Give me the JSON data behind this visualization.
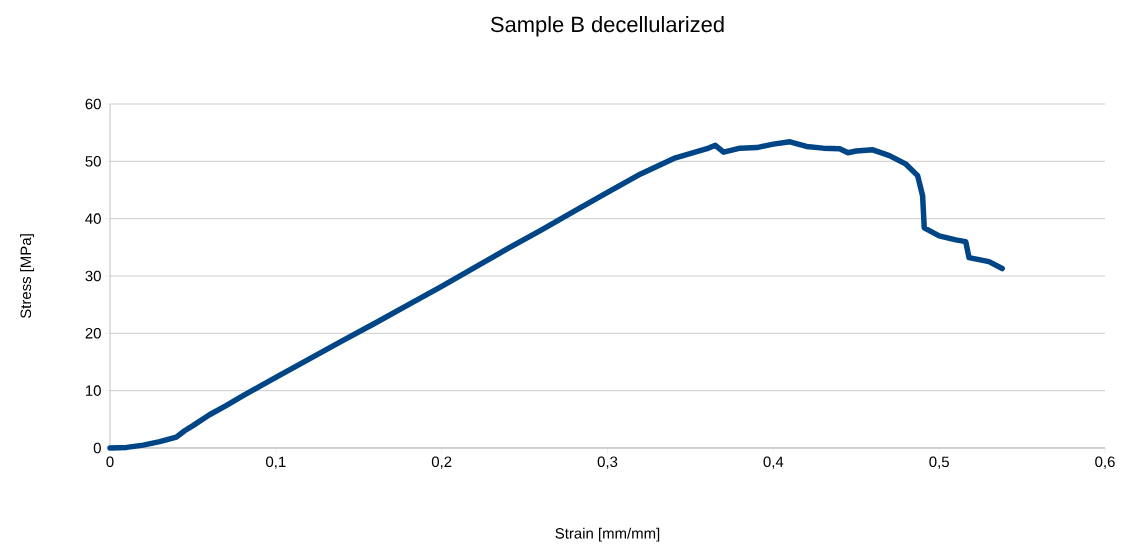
{
  "chart_data": {
    "type": "line",
    "title": "Sample B decellularized",
    "xlabel": "Strain [mm/mm]",
    "ylabel": "Stress [MPa]",
    "series": [
      {
        "color": "#004586",
        "x": [
          0,
          0.01,
          0.02,
          0.03,
          0.04,
          0.045,
          0.05,
          0.06,
          0.07,
          0.08,
          0.09,
          0.1,
          0.12,
          0.14,
          0.16,
          0.18,
          0.2,
          0.22,
          0.24,
          0.26,
          0.28,
          0.3,
          0.32,
          0.34,
          0.36,
          0.365,
          0.37,
          0.38,
          0.39,
          0.4,
          0.41,
          0.42,
          0.43,
          0.44,
          0.445,
          0.45,
          0.46,
          0.47,
          0.48,
          0.487,
          0.49,
          0.491,
          0.5,
          0.51,
          0.516,
          0.518,
          0.53,
          0.538
        ],
        "values": [
          0,
          0.1,
          0.5,
          1.1,
          1.9,
          3.0,
          3.9,
          5.8,
          7.4,
          9.1,
          10.7,
          12.3,
          15.5,
          18.7,
          21.8,
          25.0,
          28.2,
          31.5,
          34.8,
          38.0,
          41.3,
          44.6,
          47.8,
          50.5,
          52.2,
          52.8,
          51.6,
          52.3,
          52.4,
          53.0,
          53.4,
          52.6,
          52.3,
          52.2,
          51.5,
          51.8,
          52.0,
          51.0,
          49.5,
          47.5,
          44.0,
          38.4,
          37.0,
          36.3,
          36.0,
          33.2,
          32.5,
          31.3
        ]
      }
    ],
    "xlim": [
      0,
      0.6
    ],
    "xticks": [
      {
        "value": 0,
        "label": "0"
      },
      {
        "value": 0.1,
        "label": "0,1"
      },
      {
        "value": 0.2,
        "label": "0,2"
      },
      {
        "value": 0.3,
        "label": "0,3"
      },
      {
        "value": 0.4,
        "label": "0,4"
      },
      {
        "value": 0.5,
        "label": "0,5"
      },
      {
        "value": 0.6,
        "label": "0,6"
      }
    ],
    "ylim": [
      0,
      60
    ],
    "yticks": [
      0,
      10,
      20,
      30,
      40,
      50,
      60
    ],
    "grid": "y",
    "marker": "none",
    "line_style": "solid"
  }
}
